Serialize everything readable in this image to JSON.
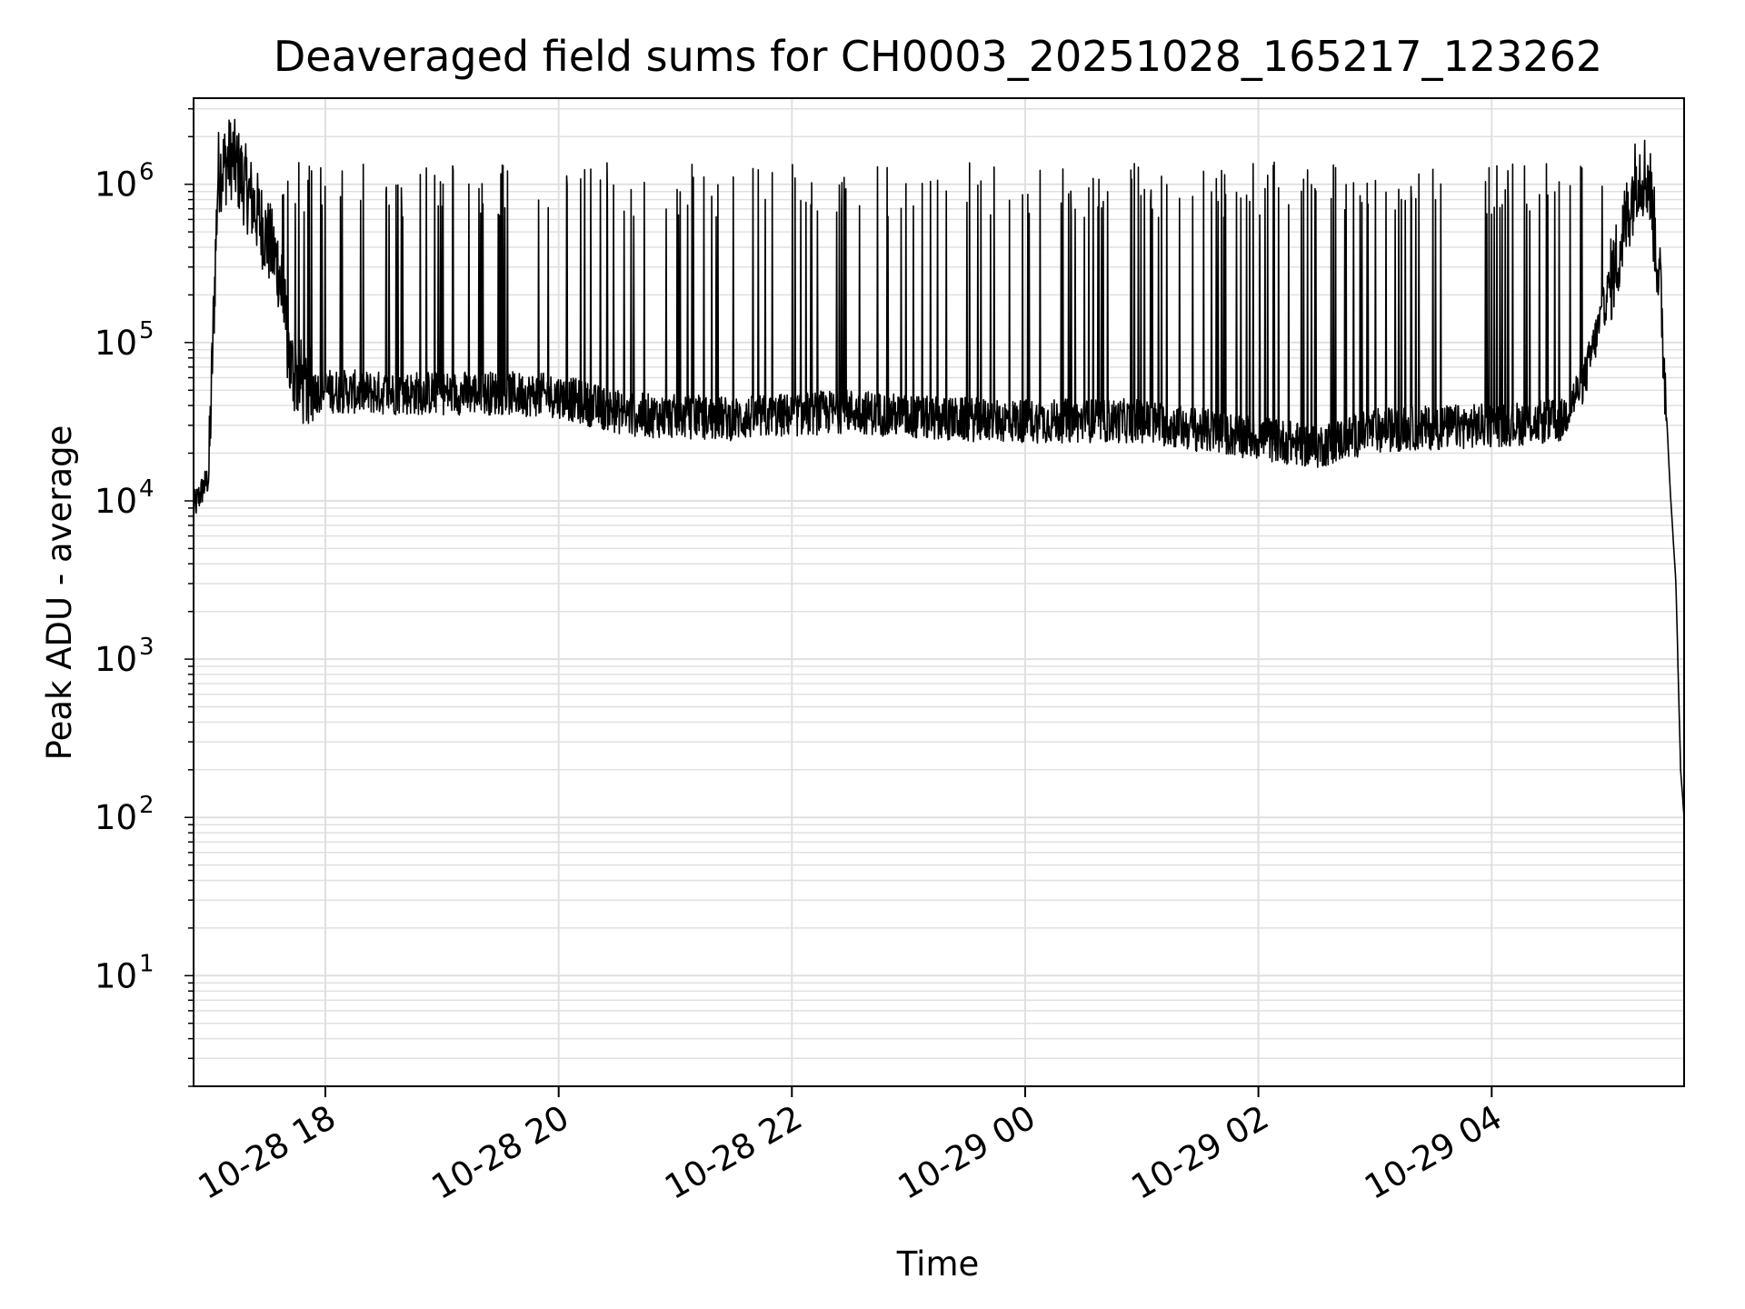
{
  "chart_data": {
    "type": "line",
    "title": "Deaveraged field sums for CH0003_20251028_165217_123262",
    "xlabel": "Time",
    "ylabel": "Peak ADU - average",
    "yscale": "log",
    "ylim": [
      2,
      3500000
    ],
    "xlim_hours": [
      16.87,
      29.65
    ],
    "grid": true,
    "line_color": "#000000",
    "grid_color": "#e0e0e0",
    "x_ticks": [
      {
        "hour": 18,
        "label": "10-28 18"
      },
      {
        "hour": 20,
        "label": "10-28 20"
      },
      {
        "hour": 22,
        "label": "10-28 22"
      },
      {
        "hour": 24,
        "label": "10-29 00"
      },
      {
        "hour": 26,
        "label": "10-29 02"
      },
      {
        "hour": 28,
        "label": "10-29 04"
      }
    ],
    "y_ticks": [
      {
        "value": 10,
        "base": "10",
        "exp": "1"
      },
      {
        "value": 100,
        "base": "10",
        "exp": "2"
      },
      {
        "value": 1000,
        "base": "10",
        "exp": "3"
      },
      {
        "value": 10000,
        "base": "10",
        "exp": "4"
      },
      {
        "value": 100000,
        "base": "10",
        "exp": "5"
      },
      {
        "value": 1000000,
        "base": "10",
        "exp": "6"
      }
    ],
    "series": [
      {
        "name": "Deaveraged field sum",
        "baseline_profile": [
          [
            16.87,
            9000
          ],
          [
            16.95,
            12000
          ],
          [
            17.0,
            14000
          ],
          [
            17.08,
            1200000
          ],
          [
            17.2,
            1500000
          ],
          [
            17.4,
            700000
          ],
          [
            17.6,
            300000
          ],
          [
            17.7,
            70000
          ],
          [
            17.85,
            50000
          ],
          [
            18.5,
            48000
          ],
          [
            19.5,
            48000
          ],
          [
            20.0,
            46000
          ],
          [
            20.3,
            40000
          ],
          [
            20.6,
            35000
          ],
          [
            21.5,
            33000
          ],
          [
            22.5,
            37000
          ],
          [
            23.2,
            33000
          ],
          [
            24.0,
            32000
          ],
          [
            25.0,
            32000
          ],
          [
            25.5,
            28000
          ],
          [
            26.0,
            25000
          ],
          [
            26.5,
            22000
          ],
          [
            27.0,
            28000
          ],
          [
            28.0,
            30000
          ],
          [
            28.6,
            32000
          ],
          [
            28.8,
            60000
          ],
          [
            29.1,
            400000
          ],
          [
            29.25,
            1200000
          ],
          [
            29.35,
            1100000
          ],
          [
            29.45,
            200000
          ],
          [
            29.53,
            12000
          ],
          [
            29.58,
            3000
          ],
          [
            29.62,
            200
          ],
          [
            29.65,
            100
          ]
        ],
        "spike_level": 1000000,
        "spike_count": 230
      }
    ]
  }
}
